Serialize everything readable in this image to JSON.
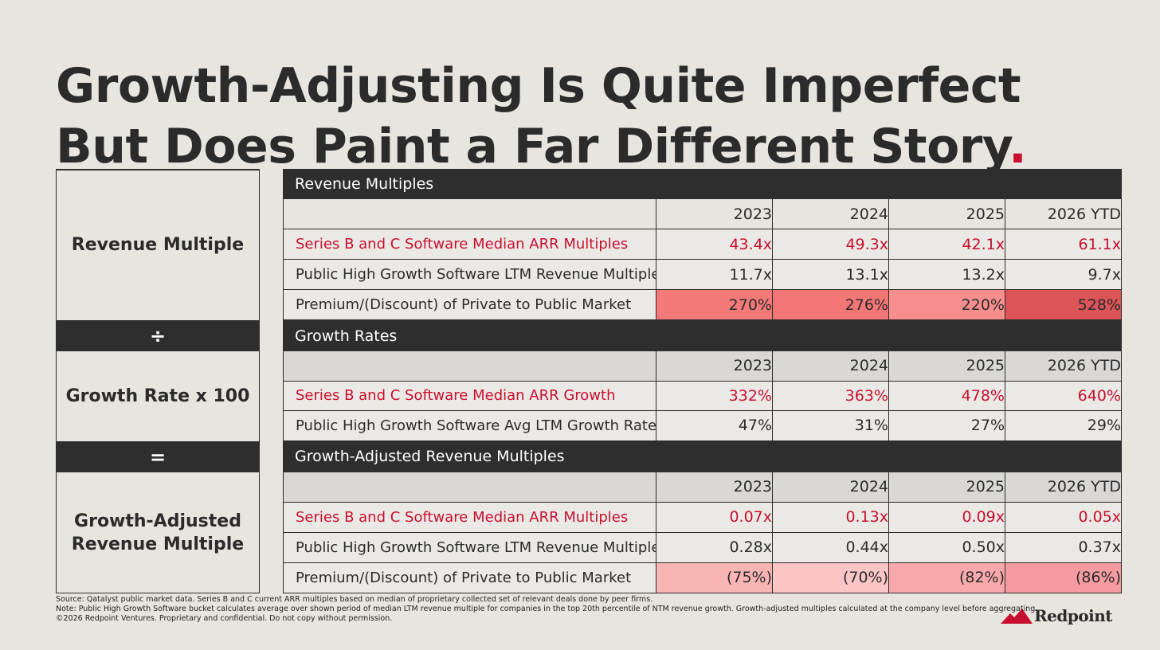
{
  "title": {
    "text": "Growth-Adjusting Is Quite Imperfect But Does Paint a Far Different Story",
    "dot": "."
  },
  "formula": {
    "top": "Revenue Multiple",
    "divide": "÷",
    "middle": "Growth Rate x 100",
    "equals": "=",
    "bottom": "Growth-Adjusted Revenue Multiple"
  },
  "sections": [
    {
      "title": "Revenue Multiples",
      "years": [
        "2023",
        "2024",
        "2025",
        "2026 YTD"
      ],
      "years_fill": "#e8e5e0",
      "rows": [
        {
          "label": "Series B and C Software Median ARR Multiples",
          "color": "#c8102e",
          "values": [
            "43.4x",
            "49.3x",
            "42.1x",
            "61.1x"
          ]
        },
        {
          "label": "Public High Growth Software LTM Revenue Multiples",
          "color": "#2b2b2b",
          "values": [
            "11.7x",
            "13.1x",
            "13.2x",
            "9.7x"
          ]
        },
        {
          "label": "Premium/(Discount) of Private to Public Market",
          "color": "#2b2b2b",
          "values": [
            "270%",
            "276%",
            "220%",
            "528%"
          ],
          "fills": [
            "#f47a7a",
            "#f57676",
            "#f78e8e",
            "#dc5457"
          ]
        }
      ]
    },
    {
      "title": "Growth Rates",
      "years": [
        "2023",
        "2024",
        "2025",
        "2026 YTD"
      ],
      "years_fill": "#d9d8d6",
      "rows": [
        {
          "label": "Series B and C Software Median ARR Growth",
          "color": "#c8102e",
          "values": [
            "332%",
            "363%",
            "478%",
            "640%"
          ]
        },
        {
          "label": "Public High Growth Software Avg LTM Growth Rate",
          "color": "#2b2b2b",
          "values": [
            "47%",
            "31%",
            "27%",
            "29%"
          ]
        }
      ]
    },
    {
      "title": "Growth-Adjusted Revenue Multiples",
      "years": [
        "2023",
        "2024",
        "2025",
        "2026 YTD"
      ],
      "years_fill": "#d9d8d6",
      "rows": [
        {
          "label": "Series B and C Software Median ARR Multiples",
          "color": "#c8102e",
          "values": [
            "0.07x",
            "0.13x",
            "0.09x",
            "0.05x"
          ]
        },
        {
          "label": "Public High Growth Software LTM Revenue Multiples",
          "color": "#2b2b2b",
          "values": [
            "0.28x",
            "0.44x",
            "0.50x",
            "0.37x"
          ]
        },
        {
          "label": "Premium/(Discount) of Private to Public Market",
          "color": "#2b2b2b",
          "values": [
            "(75%)",
            "(70%)",
            "(82%)",
            "(86%)"
          ],
          "fills": [
            "#f9b4b4",
            "#fbc5c5",
            "#f9a9ab",
            "#f69ca0"
          ]
        }
      ]
    }
  ],
  "footer": [
    "Source: Qatalyst public market data. Series B and C current ARR multiples based on median of proprietary collected set of relevant deals done by peer firms.",
    "Note: Public High Growth Software bucket calculates average over shown period of median LTM revenue multiple for companies in the top 20th percentile of NTM revenue growth. Growth-adjusted multiples calculated at the company level before aggregating.",
    "©2026 Redpoint Ventures. Proprietary and confidential. Do not copy without permission."
  ],
  "logo": "Redpoint"
}
